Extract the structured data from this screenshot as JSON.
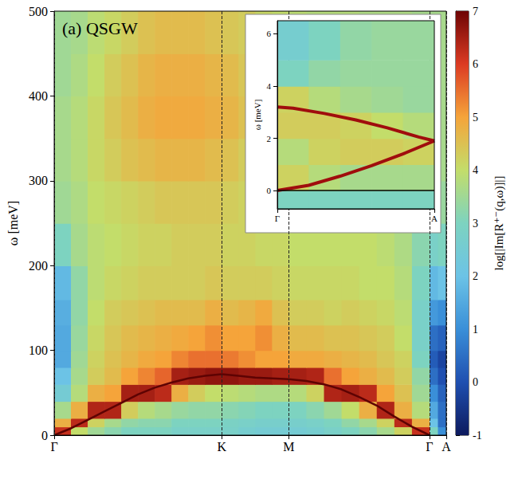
{
  "chart_data": [
    {
      "type": "heatmap",
      "title": "(a) QSGW",
      "y_label": "ω [meV]",
      "xlim": [
        0,
        2.34
      ],
      "xticks": [
        {
          "value": 0,
          "label": "Γ"
        },
        {
          "value": 1,
          "label": "K"
        },
        {
          "value": 1.4,
          "label": "M"
        },
        {
          "value": 2.24,
          "label": "Γ"
        },
        {
          "value": 2.34,
          "label": "A"
        }
      ],
      "ylim": [
        0,
        500
      ],
      "yticks": [
        0,
        100,
        200,
        300,
        400,
        500
      ],
      "grid": true,
      "cells": {
        "x_edges": [
          0,
          0.1,
          0.2,
          0.3,
          0.4,
          0.5,
          0.6,
          0.7,
          0.8,
          0.9,
          1.0,
          1.1,
          1.2,
          1.3,
          1.4,
          1.505,
          1.61,
          1.715,
          1.82,
          1.925,
          2.03,
          2.135,
          2.24,
          2.29,
          2.34
        ],
        "y_edges": [
          0,
          10,
          20,
          40,
          60,
          80,
          100,
          130,
          160,
          200,
          250,
          300,
          350,
          400,
          450,
          500
        ],
        "values": [
          [
            6.2,
            4.0,
            3.5,
            3.2,
            3.0,
            3.0,
            3.0,
            2.8,
            2.8,
            2.8,
            2.8,
            2.6,
            2.5,
            2.5,
            2.5,
            2.6,
            2.8,
            3.0,
            3.2,
            3.6,
            4.2,
            6.2,
            3.0,
            1.0
          ],
          [
            4.8,
            6.3,
            4.2,
            3.6,
            3.3,
            3.2,
            3.2,
            3.0,
            3.0,
            3.0,
            2.9,
            2.8,
            2.7,
            2.7,
            2.7,
            2.8,
            3.0,
            3.3,
            3.6,
            4.2,
            6.3,
            4.8,
            2.0,
            0.5
          ],
          [
            3.6,
            4.8,
            6.4,
            6.4,
            4.3,
            3.8,
            3.6,
            3.4,
            3.3,
            3.3,
            3.2,
            3.1,
            3.0,
            3.0,
            3.0,
            3.2,
            3.5,
            4.0,
            4.8,
            6.4,
            4.8,
            3.8,
            1.5,
            0.5
          ],
          [
            2.5,
            3.8,
            4.8,
            5.0,
            6.5,
            6.5,
            6.3,
            4.8,
            4.3,
            4.0,
            3.9,
            3.8,
            3.7,
            3.7,
            3.8,
            4.2,
            6.4,
            6.5,
            6.3,
            5.0,
            4.5,
            3.5,
            1.0,
            0.3
          ],
          [
            2.0,
            3.6,
            4.3,
            4.6,
            5.0,
            5.3,
            5.6,
            6.5,
            6.6,
            6.7,
            6.7,
            6.6,
            6.6,
            6.5,
            6.5,
            6.4,
            5.5,
            5.0,
            4.8,
            4.6,
            4.3,
            3.3,
            0.5,
            0.0
          ],
          [
            1.5,
            3.5,
            4.2,
            4.5,
            4.7,
            4.9,
            5.0,
            5.3,
            5.5,
            5.5,
            5.4,
            5.2,
            5.0,
            5.0,
            4.9,
            4.9,
            4.8,
            4.7,
            4.6,
            4.4,
            4.2,
            3.0,
            0.2,
            -0.2
          ],
          [
            1.5,
            3.4,
            4.1,
            4.4,
            4.6,
            4.7,
            4.8,
            4.9,
            5.0,
            5.2,
            5.0,
            5.0,
            5.2,
            4.8,
            4.6,
            4.6,
            4.5,
            4.5,
            4.4,
            4.3,
            4.0,
            2.8,
            0.5,
            0.3
          ],
          [
            1.6,
            3.3,
            4.0,
            4.3,
            4.4,
            4.5,
            4.6,
            4.6,
            4.6,
            4.8,
            4.6,
            4.7,
            4.9,
            4.5,
            4.3,
            4.3,
            4.2,
            4.3,
            4.2,
            4.1,
            3.9,
            2.8,
            1.2,
            1.0
          ],
          [
            1.8,
            3.3,
            3.9,
            4.1,
            4.2,
            4.3,
            4.3,
            4.3,
            4.3,
            4.4,
            4.3,
            4.3,
            4.3,
            4.2,
            4.1,
            4.1,
            4.1,
            4.1,
            4.0,
            4.0,
            3.8,
            3.0,
            1.8,
            2.0
          ],
          [
            3.0,
            3.6,
            3.9,
            4.0,
            4.1,
            4.2,
            4.2,
            4.3,
            4.3,
            4.3,
            4.2,
            4.2,
            4.1,
            4.1,
            4.0,
            4.0,
            4.0,
            4.0,
            4.0,
            3.9,
            3.7,
            3.2,
            2.8,
            3.0
          ],
          [
            3.5,
            3.7,
            4.0,
            4.1,
            4.2,
            4.3,
            4.4,
            4.4,
            4.4,
            4.4,
            4.3,
            4.2,
            4.1,
            4.0,
            4.0,
            4.0,
            3.9,
            3.9,
            3.9,
            3.8,
            3.7,
            3.5,
            3.4,
            3.4
          ],
          [
            3.6,
            3.8,
            4.1,
            4.3,
            4.5,
            4.6,
            4.7,
            4.7,
            4.7,
            4.6,
            4.5,
            4.3,
            4.1,
            4.0,
            4.0,
            3.9,
            3.9,
            3.9,
            3.9,
            3.8,
            3.7,
            3.6,
            3.6,
            3.6
          ],
          [
            3.6,
            3.8,
            4.1,
            4.4,
            4.6,
            4.8,
            4.9,
            4.9,
            4.9,
            4.8,
            4.7,
            4.5,
            4.2,
            4.0,
            4.0,
            3.9,
            3.9,
            3.9,
            3.8,
            3.8,
            3.7,
            3.6,
            3.6,
            3.6
          ],
          [
            3.5,
            3.7,
            4.0,
            4.3,
            4.5,
            4.7,
            4.8,
            4.8,
            4.8,
            4.7,
            4.6,
            4.4,
            4.2,
            4.0,
            3.9,
            3.9,
            3.8,
            3.8,
            3.8,
            3.7,
            3.7,
            3.6,
            3.6,
            3.6
          ],
          [
            3.5,
            3.6,
            3.9,
            4.1,
            4.3,
            4.5,
            4.6,
            4.6,
            4.6,
            4.5,
            4.4,
            4.3,
            4.1,
            4.0,
            3.9,
            3.8,
            3.8,
            3.8,
            3.7,
            3.7,
            3.7,
            3.6,
            3.6,
            3.6
          ]
        ]
      },
      "ridge": {
        "x": [
          0,
          0.1,
          0.2,
          0.3,
          0.4,
          0.5,
          0.6,
          0.7,
          0.8,
          0.9,
          1.0,
          1.1,
          1.2,
          1.3,
          1.4,
          1.505,
          1.61,
          1.715,
          1.82,
          1.925,
          2.03,
          2.135,
          2.24
        ],
        "values": [
          0,
          8,
          18,
          28,
          38,
          48,
          56,
          62,
          67,
          70,
          72,
          70,
          68,
          67,
          66,
          64,
          60,
          54,
          45,
          35,
          22,
          10,
          0
        ],
        "color": "#5e0303",
        "line_style": "solid"
      },
      "colorbar": {
        "label": "log[|Im[R⁺⁻(q,ω)]|]",
        "range": [
          -1,
          7
        ],
        "ticks": [
          -1,
          0,
          1,
          2,
          3,
          4,
          5,
          6,
          7
        ]
      }
    },
    {
      "type": "heatmap",
      "y_label": "ω [meV]",
      "xlim": [
        0,
        1
      ],
      "xticks": [
        {
          "value": 0,
          "label": "Γ"
        },
        {
          "value": 1,
          "label": "A"
        }
      ],
      "ylim": [
        -0.7,
        6.5
      ],
      "yticks": [
        0,
        2,
        4,
        6
      ],
      "cells": {
        "x_edges": [
          0,
          0.2,
          0.4,
          0.6,
          0.8,
          1.0
        ],
        "y_edges": [
          -0.7,
          0,
          1,
          2,
          3,
          4,
          5,
          6.5
        ],
        "values": [
          [
            3.0,
            3.0,
            3.0,
            3.0,
            3.0
          ],
          [
            4.2,
            3.8,
            3.6,
            3.6,
            3.6
          ],
          [
            3.8,
            4.2,
            4.3,
            4.3,
            4.2
          ],
          [
            4.3,
            4.3,
            4.2,
            4.0,
            3.8
          ],
          [
            4.2,
            3.8,
            3.6,
            3.5,
            3.4
          ],
          [
            3.0,
            3.3,
            3.4,
            3.4,
            3.4
          ],
          [
            2.6,
            3.0,
            3.3,
            3.4,
            3.4
          ]
        ]
      },
      "lines": [
        {
          "x": [
            0,
            0.1,
            0.3,
            0.5,
            0.7,
            0.9,
            1.0
          ],
          "values": [
            3.2,
            3.15,
            2.95,
            2.7,
            2.4,
            2.05,
            1.9
          ],
          "color": "#a00d0d",
          "line_style": "solid"
        },
        {
          "x": [
            0,
            0.2,
            0.4,
            0.6,
            0.8,
            1.0
          ],
          "values": [
            0,
            0.2,
            0.55,
            0.95,
            1.4,
            1.9
          ],
          "color": "#a00d0d",
          "line_style": "solid"
        },
        {
          "x": [
            0,
            1
          ],
          "values": [
            0,
            0
          ],
          "color": "#000000",
          "line_style": "solid"
        }
      ]
    }
  ]
}
